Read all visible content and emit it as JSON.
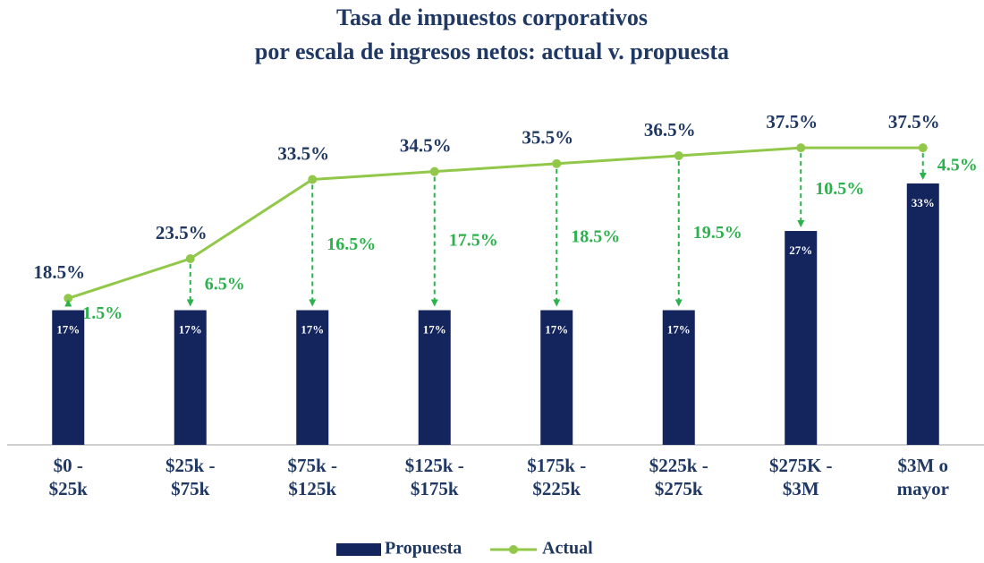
{
  "chart_data": {
    "type": "bar_line",
    "title": [
      "Tasa de impuestos corporativos",
      "por escala de ingresos netos: actual v. propuesta"
    ],
    "categories": [
      [
        "$0 -",
        "$25k"
      ],
      [
        "$25k -",
        "$75k"
      ],
      [
        "$75k -",
        "$125k"
      ],
      [
        "$125k -",
        "$175k"
      ],
      [
        "$175k -",
        "$225k"
      ],
      [
        "$225k -",
        "$275k"
      ],
      [
        "$275K -",
        "$3M"
      ],
      [
        "$3M o",
        "mayor"
      ]
    ],
    "series": [
      {
        "name": "Propuesta",
        "color": "#14245c",
        "kind": "bar",
        "values": [
          17,
          17,
          17,
          17,
          17,
          17,
          27,
          33
        ],
        "value_labels": [
          "17%",
          "17%",
          "17%",
          "17%",
          "17%",
          "17%",
          "27%",
          "33%"
        ]
      },
      {
        "name": "Actual",
        "color": "#92c84a",
        "kind": "line",
        "values": [
          18.5,
          23.5,
          33.5,
          34.5,
          35.5,
          36.5,
          37.5,
          37.5
        ],
        "value_labels": [
          "18.5%",
          "23.5%",
          "33.5%",
          "34.5%",
          "35.5%",
          "36.5%",
          "37.5%",
          "37.5%"
        ]
      }
    ],
    "differences": [
      1.5,
      6.5,
      16.5,
      17.5,
      18.5,
      19.5,
      10.5,
      4.5
    ],
    "difference_labels": [
      "1.5%",
      "6.5%",
      "16.5%",
      "17.5%",
      "18.5%",
      "19.5%",
      "10.5%",
      "4.5%"
    ],
    "difference_color": "#2bb24c",
    "ylim": [
      0,
      40
    ]
  }
}
